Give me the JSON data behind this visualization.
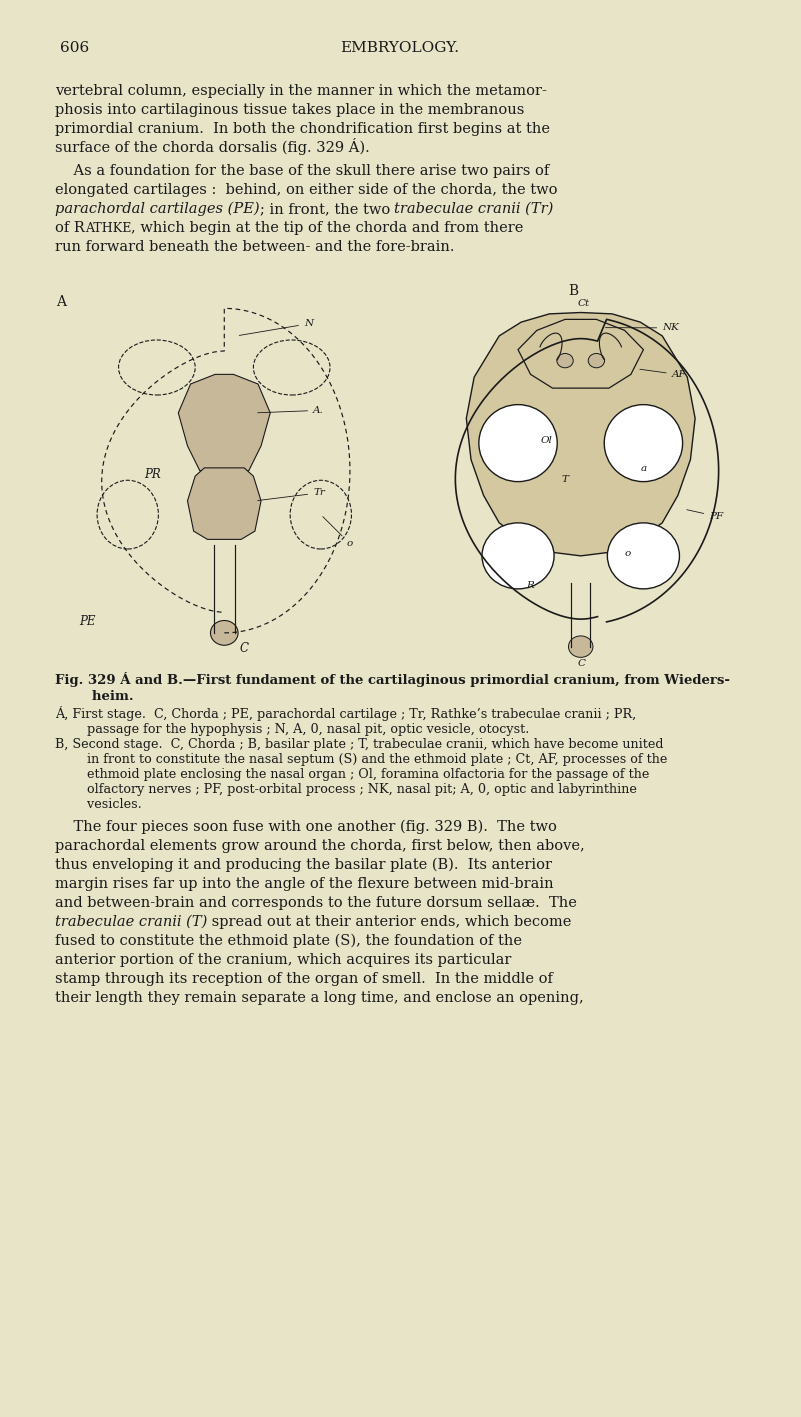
{
  "bg_color": "#e8e4c8",
  "page_number": "606",
  "header": "EMBRYOLOGY.",
  "text_color": "#1a1a1a",
  "lh": 19,
  "p1_lines": [
    "vertebral column, especially in the manner in which the metamor-",
    "phosis into cartilaginous tissue takes place in the membranous",
    "primordial cranium.  In both the chondrification first begins at the",
    "surface of the chorda dorsalis (fig. 329 Á)."
  ],
  "cap_line1": "Fig. 329 Á and B.—First fundament of the cartilaginous primordial cranium, from Wieders-",
  "cap_line2": "        heim.",
  "cap_a_lines": [
    "Á, First stage.  C, Chorda ; PE, parachordal cartilage ; Tr, Rathke’s trabeculae cranii ; PR,",
    "        passage for the hypophysis ; N, A, 0, nasal pit, optic vesicle, otocyst."
  ],
  "cap_b_lines": [
    "B, Second stage.  C, Chorda ; B, basilar plate ; T, trabeculae cranii, which have become united",
    "        in front to constitute the nasal septum (S) and the ethmoid plate ; Ct, AF, processes of the",
    "        ethmoid plate enclosing the nasal organ ; Ol, foramina olfactoria for the passage of the",
    "        olfactory nerves ; PF, post-orbital process ; NK, nasal pit; A, 0, optic and labyrinthine",
    "        vesicles."
  ],
  "p3_line1": "    The four pieces soon fuse with one another (fig. 329 B).  The two",
  "p3_lines_normal": [
    "parachordal elements grow around the chorda, first below, then above,",
    "thus enveloping it and producing the basilar plate (B).  Its anterior",
    "margin rises far up into the angle of the flexure between mid-brain",
    "and between-brain and corresponds to the future dorsum sellaæ.  The"
  ],
  "p3_italic": "trabeculae cranii (T)",
  "p3_end_lines": [
    " spread out at their anterior ends, which become",
    "fused to constitute the ethmoid plate (S), the foundation of the",
    "anterior portion of the cranium, which acquires its particular",
    "stamp through its reception of the organ of smell.  In the middle of",
    "their length they remain separate a long time, and enclose an opening,"
  ],
  "cart_color": "#c8b89a",
  "shade_color": "#d4c8a0",
  "line_color": "#1a1a1a"
}
